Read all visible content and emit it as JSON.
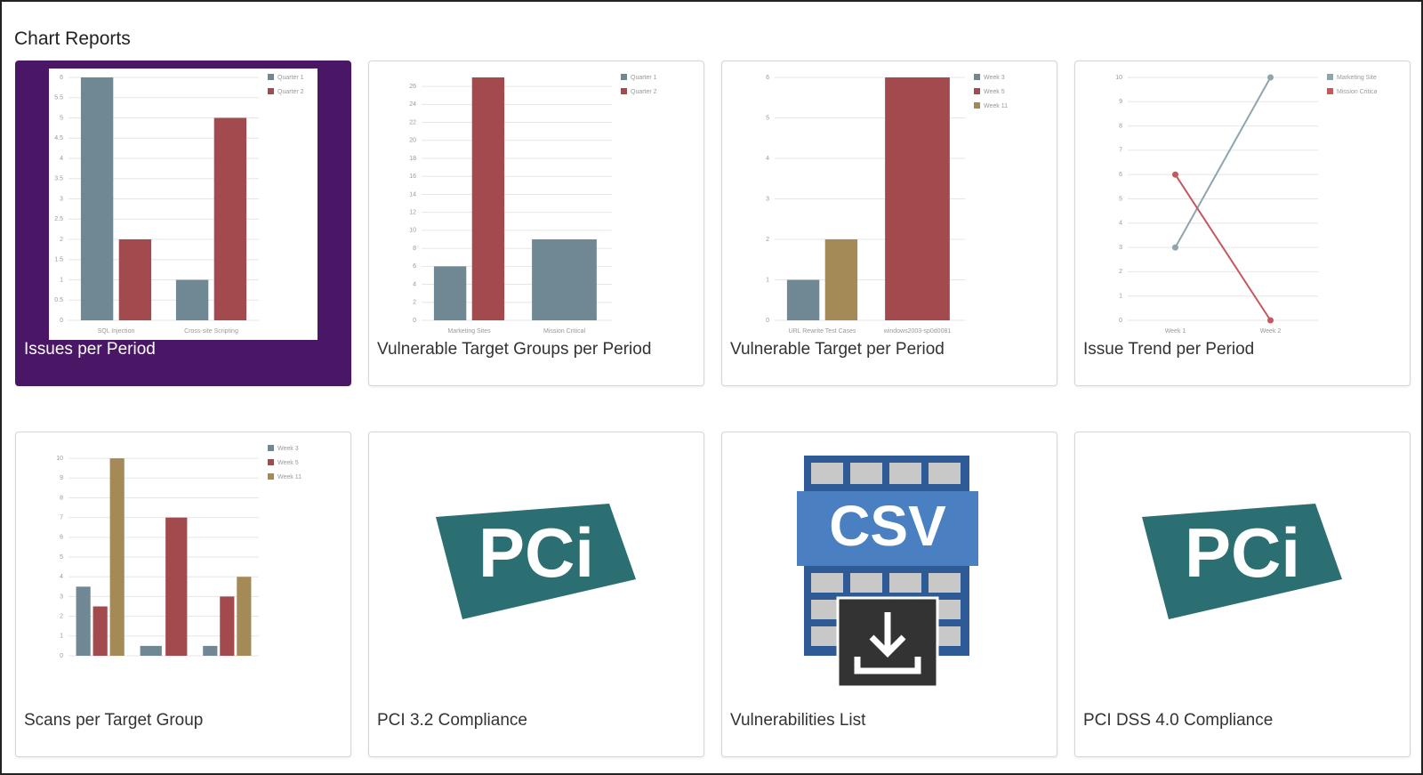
{
  "header": {
    "title": "Chart Reports"
  },
  "cards": [
    {
      "title": "Issues per Period",
      "selected": true,
      "thumbnail": {
        "type": "bar",
        "categories": [
          "SQL Injection",
          "Cross-site Scripting"
        ],
        "series": [
          {
            "name": "Quarter 1",
            "color": "#6f8893",
            "values": [
              6,
              1
            ]
          },
          {
            "name": "Quarter 2",
            "color": "#a24a4e",
            "values": [
              2,
              5
            ]
          }
        ],
        "ylim": [
          0,
          6
        ],
        "yticks": [
          0,
          0.5,
          1,
          1.5,
          2,
          2.5,
          3,
          3.5,
          4,
          4.5,
          5,
          5.5,
          6
        ]
      }
    },
    {
      "title": "Vulnerable Target Groups per Period",
      "selected": false,
      "thumbnail": {
        "type": "bar",
        "categories": [
          "Marketing Sites",
          "Mission Critical"
        ],
        "series": [
          {
            "name": "Quarter 1",
            "color": "#6f8893",
            "values": [
              6,
              9
            ]
          },
          {
            "name": "Quarter 2",
            "color": "#a24a4e",
            "values": [
              27,
              null
            ]
          }
        ],
        "ylim": [
          0,
          27
        ],
        "yticks": [
          0,
          2,
          4,
          6,
          8,
          10,
          12,
          14,
          16,
          18,
          20,
          22,
          24,
          26
        ]
      }
    },
    {
      "title": "Vulnerable Target per Period",
      "selected": false,
      "thumbnail": {
        "type": "bar",
        "categories": [
          "URL Rewrite Test Cases",
          "windows2003-sp0d0081"
        ],
        "series": [
          {
            "name": "Week 3",
            "color": "#6f8893",
            "values": [
              1,
              null
            ]
          },
          {
            "name": "Week 5",
            "color": "#a24a4e",
            "values": [
              null,
              6
            ]
          },
          {
            "name": "Week 11",
            "color": "#a38a57",
            "values": [
              2,
              null
            ]
          }
        ],
        "ylim": [
          0,
          6
        ],
        "yticks": [
          0,
          1,
          2,
          3,
          4,
          5,
          6
        ]
      }
    },
    {
      "title": "Issue Trend per Period",
      "selected": false,
      "thumbnail": {
        "type": "line",
        "categories": [
          "Week 1",
          "Week 2"
        ],
        "series": [
          {
            "name": "Marketing Sites",
            "color": "#8fa5ae",
            "values": [
              3,
              10
            ]
          },
          {
            "name": "Mission Critical",
            "color": "#c4585c",
            "values": [
              6,
              0
            ]
          }
        ],
        "ylim": [
          0,
          10
        ],
        "yticks": [
          0,
          1,
          2,
          3,
          4,
          5,
          6,
          7,
          8,
          9,
          10
        ]
      }
    },
    {
      "title": "Scans per Target Group",
      "selected": false,
      "thumbnail": {
        "type": "bar",
        "categories": [
          null,
          null,
          null
        ],
        "series": [
          {
            "name": "Week 3",
            "color": "#6f8893",
            "values": [
              3.5,
              0.5,
              0.5
            ]
          },
          {
            "name": "Week 5",
            "color": "#a24a4e",
            "values": [
              2.5,
              7,
              3
            ]
          },
          {
            "name": "Week 11",
            "color": "#a38a57",
            "values": [
              10,
              null,
              4
            ]
          }
        ],
        "ylim": [
          0,
          10.5
        ],
        "yticks": [
          0,
          1,
          2,
          3,
          4,
          5,
          6,
          7,
          8,
          9,
          10
        ]
      }
    },
    {
      "title": "PCI 3.2 Compliance",
      "selected": false,
      "logo_text": "PCi"
    },
    {
      "title": "Vulnerabilities List",
      "selected": false,
      "logo_text": "CSV"
    },
    {
      "title": "PCI DSS 4.0 Compliance",
      "selected": false,
      "logo_text": "PCi"
    }
  ]
}
